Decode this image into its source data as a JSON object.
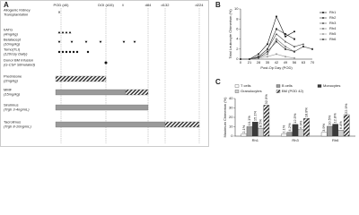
{
  "panels": {
    "a": {
      "letter": "A",
      "headers": [
        "POD (d0)",
        "DOI (d15)",
        "d84",
        "d132",
        "d224"
      ],
      "rows": [
        {
          "lines": [
            "Allogenic Kidney",
            "Transplantation"
          ]
        },
        {
          "lines": [
            "hATG",
            "(4mg/kg)"
          ]
        },
        {
          "lines": [
            "Belatacept",
            "(10mg/kg)"
          ]
        },
        {
          "lines": [
            "Tomo(TLI)",
            "(120cGy Daily)"
          ]
        },
        {
          "lines": [
            "Donor BM Infusion",
            "(G-CSF Stimulated)"
          ]
        },
        {
          "lines": [
            "Prednisone",
            "(2mg/kg)"
          ]
        },
        {
          "lines": [
            "MMF",
            "(15mg/kg)"
          ]
        },
        {
          "lines": [
            "Sirolimus",
            "(Trgh 3-4ng/mL)"
          ]
        },
        {
          "lines": [
            "Tacrolimus",
            "(Trgh 8-10ng/mL)"
          ]
        }
      ]
    }
  },
  "chart_data": [
    {
      "type": "line",
      "letter": "B",
      "ylabel": "Total Leukocyte Chimerism (%)",
      "xlabel": "Post-Op Day (POD)",
      "categories": [
        "0",
        "21",
        "28",
        "35",
        "42",
        "49",
        "56",
        "63",
        "70"
      ],
      "ylim": [
        0,
        10
      ],
      "yticks": [
        0,
        2,
        4,
        6,
        8,
        10
      ],
      "legend": "right",
      "series": [
        {
          "name": "Rh1",
          "color": "#111111",
          "marker": "circle",
          "values": [
            0,
            0,
            1,
            3,
            8.5,
            4.5,
            5.5,
            null,
            null
          ]
        },
        {
          "name": "Rh2",
          "color": "#333333",
          "marker": "square",
          "values": [
            0,
            0,
            0.5,
            2,
            6,
            5,
            4,
            null,
            null
          ]
        },
        {
          "name": "Rh3",
          "color": "#555555",
          "marker": "triangle",
          "values": [
            0,
            0,
            0.5,
            2,
            5,
            3.5,
            2.5,
            3,
            null
          ]
        },
        {
          "name": "Rh4",
          "color": "#777777",
          "marker": "diamond",
          "values": [
            0,
            0,
            0.3,
            1,
            4,
            2.5,
            1.5,
            null,
            null
          ]
        },
        {
          "name": "Rh5",
          "color": "#999999",
          "marker": "circle",
          "values": [
            0,
            0,
            0.2,
            0.5,
            1,
            0.5,
            0.2,
            null,
            null
          ]
        },
        {
          "name": "Rh6",
          "color": "#444444",
          "marker": "square",
          "values": [
            0,
            0,
            0.3,
            1.5,
            3.5,
            2,
            1.5,
            2.5,
            2
          ]
        }
      ]
    },
    {
      "type": "bar",
      "letter": "C",
      "ylabel": "Maximum Chimerism (%)",
      "categories": [
        "Rh1",
        "Rh3",
        "Rh6"
      ],
      "ylim": [
        0,
        40
      ],
      "yticks": [
        0,
        10,
        20,
        30,
        40
      ],
      "legend": "top",
      "series": [
        {
          "name": "T cells",
          "color": "#ffffff",
          "values": [
            2.1,
            2.1,
            3.9
          ],
          "value_labels": [
            "2.1%",
            "2.1%",
            "3.9%"
          ]
        },
        {
          "name": "B cells",
          "color": "#9a9a9a",
          "values": [
            10.1,
            4.2,
            10.5
          ],
          "value_labels": [
            "10.1%",
            "4.2%",
            "10.5%"
          ]
        },
        {
          "name": "Monocytes",
          "color": "#3a3a3a",
          "values": [
            15.1,
            12.5,
            12.8
          ],
          "value_labels": [
            "15.1%",
            "12.5%",
            "12.8%"
          ]
        },
        {
          "name": "Granulocytes",
          "color": "#d0d0d0",
          "values": [
            8.5,
            6.9,
            6.4
          ],
          "value_labels": [
            "8.5%",
            "6.9%",
            "6.4%"
          ]
        },
        {
          "name": "BM (POD 42)",
          "color": "hatch",
          "values": [
            32.9,
            18.8,
            22.9
          ],
          "value_labels": [
            "32.9%",
            "18.8%",
            "22.9%"
          ]
        }
      ]
    }
  ]
}
